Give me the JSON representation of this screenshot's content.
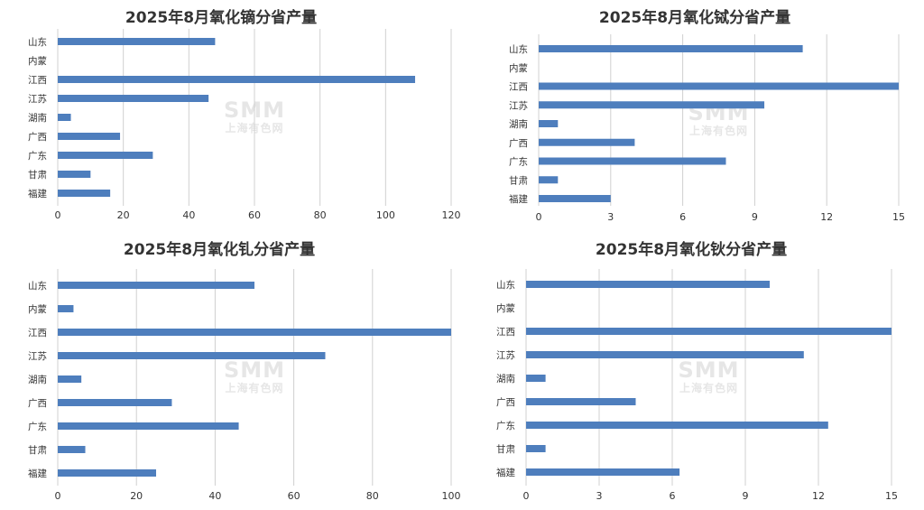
{
  "watermark": {
    "brand": "SMM",
    "brand_cn": "上海有色网"
  },
  "chart_data": [
    {
      "type": "bar",
      "orientation": "horizontal",
      "title": "2025年8月氧化镝分省产量",
      "categories": [
        "山东",
        "内蒙",
        "江西",
        "江苏",
        "湖南",
        "广西",
        "广东",
        "甘肃",
        "福建"
      ],
      "values": [
        48,
        0,
        109,
        46,
        4,
        19,
        29,
        10,
        16
      ],
      "xlim": [
        0,
        120
      ],
      "xticks": [
        0,
        20,
        40,
        60,
        80,
        100,
        120
      ],
      "grid": true,
      "color": "#4e7ebd"
    },
    {
      "type": "bar",
      "orientation": "horizontal",
      "title": "2025年8月氧化铽分省产量",
      "categories": [
        "山东",
        "内蒙",
        "江西",
        "江苏",
        "湖南",
        "广西",
        "广东",
        "甘肃",
        "福建"
      ],
      "values": [
        11,
        0,
        15,
        9.4,
        0.8,
        4,
        7.8,
        0.8,
        3
      ],
      "xlim": [
        0,
        15
      ],
      "xticks": [
        0,
        3,
        6,
        9,
        12,
        15
      ],
      "grid": true,
      "color": "#4e7ebd"
    },
    {
      "type": "bar",
      "orientation": "horizontal",
      "title": "2025年8月氧化钆分省产量",
      "categories": [
        "山东",
        "内蒙",
        "江西",
        "江苏",
        "湖南",
        "广西",
        "广东",
        "甘肃",
        "福建"
      ],
      "values": [
        50,
        4,
        100,
        68,
        6,
        29,
        46,
        7,
        25
      ],
      "xlim": [
        0,
        100
      ],
      "xticks": [
        0,
        20,
        40,
        60,
        80,
        100
      ],
      "grid": true,
      "color": "#4e7ebd"
    },
    {
      "type": "bar",
      "orientation": "horizontal",
      "title": "2025年8月氧化钬分省产量",
      "categories": [
        "山东",
        "内蒙",
        "江西",
        "江苏",
        "湖南",
        "广西",
        "广东",
        "甘肃",
        "福建"
      ],
      "values": [
        10,
        0,
        15,
        11.4,
        0.8,
        4.5,
        12.4,
        0.8,
        6.3
      ],
      "xlim": [
        0,
        15
      ],
      "xticks": [
        0,
        3,
        6,
        9,
        12,
        15
      ],
      "grid": true,
      "color": "#4e7ebd"
    }
  ]
}
